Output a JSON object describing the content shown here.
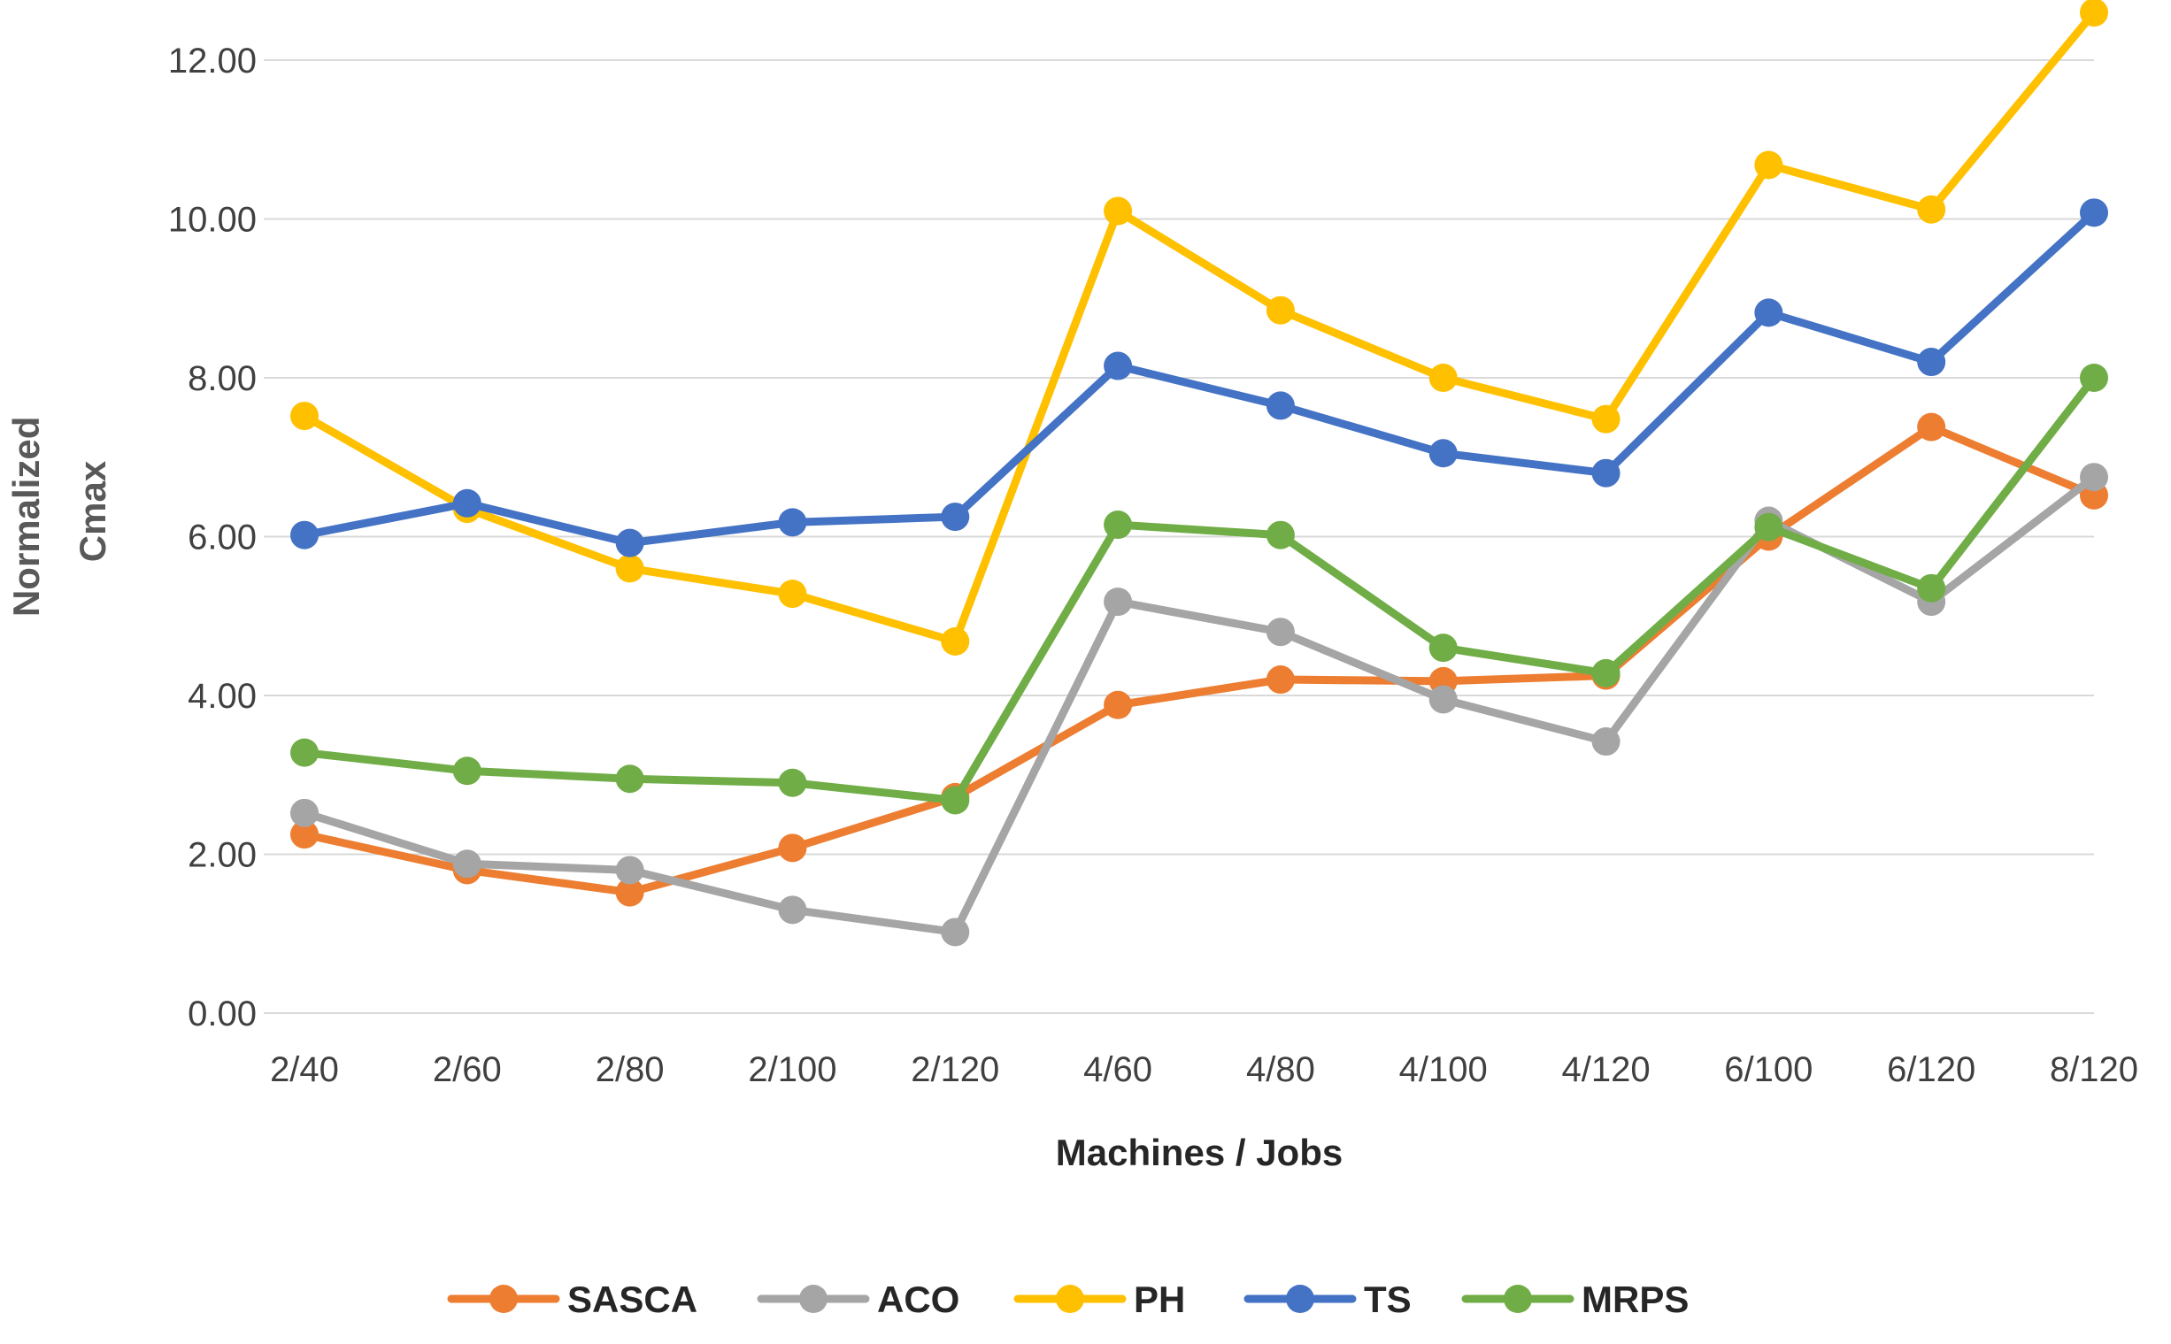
{
  "chart_data": {
    "type": "line",
    "title": "",
    "xlabel": "Machines / Jobs",
    "ylabel": "Normalized Cmax",
    "ylabel_lines": [
      "Normalized",
      "Cmax"
    ],
    "ylim": [
      0,
      12.5
    ],
    "yticks": [
      0,
      2,
      4,
      6,
      8,
      10,
      12
    ],
    "ytick_labels": [
      "0.00",
      "2.00",
      "4.00",
      "6.00",
      "8.00",
      "10.00",
      "12.00"
    ],
    "grid": true,
    "legend_position": "bottom",
    "categories": [
      "2/40",
      "2/60",
      "2/80",
      "2/100",
      "2/120",
      "4/60",
      "4/80",
      "4/100",
      "4/120",
      "6/100",
      "6/120",
      "8/120"
    ],
    "series": [
      {
        "name": "SASCA",
        "color": "#ED7D31",
        "values": [
          2.25,
          1.8,
          1.52,
          2.08,
          2.72,
          3.88,
          4.2,
          4.18,
          4.25,
          6.0,
          7.38,
          6.52
        ]
      },
      {
        "name": "ACO",
        "color": "#A5A5A5",
        "values": [
          2.52,
          1.88,
          1.8,
          1.3,
          1.02,
          5.18,
          4.8,
          3.95,
          3.42,
          6.2,
          5.18,
          6.75
        ]
      },
      {
        "name": "PH",
        "color": "#FFC000",
        "values": [
          7.52,
          6.35,
          5.6,
          5.28,
          4.68,
          10.1,
          8.85,
          8.0,
          7.48,
          10.68,
          10.12,
          12.6
        ]
      },
      {
        "name": "TS",
        "color": "#4472C4",
        "values": [
          6.02,
          6.42,
          5.92,
          6.18,
          6.25,
          8.15,
          7.65,
          7.05,
          6.8,
          8.82,
          8.2,
          10.08
        ]
      },
      {
        "name": "MRPS",
        "color": "#70AD47",
        "values": [
          3.28,
          3.05,
          2.95,
          2.9,
          2.68,
          6.15,
          6.02,
          4.6,
          4.28,
          6.12,
          5.35,
          8.0
        ]
      }
    ]
  }
}
